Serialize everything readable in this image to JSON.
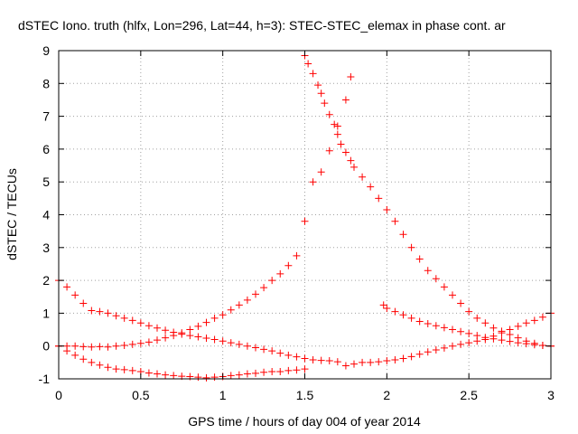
{
  "chart_data": {
    "type": "scatter",
    "title": "dSTEC Iono. truth (hlfx, Lon=296, Lat=44, h=3): STEC-STEC_elemax in phase cont. ar",
    "xlabel": "GPS time / hours of day 004 of year 2014",
    "ylabel": "dSTEC  / TECUs",
    "xlim": [
      0,
      3
    ],
    "ylim": [
      -1,
      9
    ],
    "xticks": [
      0,
      0.5,
      1,
      1.5,
      2,
      2.5,
      3
    ],
    "xtick_labels": [
      "0",
      "0.5",
      "1",
      "1.5",
      "2",
      "2.5",
      "3"
    ],
    "yticks": [
      -1,
      0,
      1,
      2,
      3,
      4,
      5,
      6,
      7,
      8,
      9
    ],
    "ytick_labels": [
      "-1",
      "0",
      "1",
      "2",
      "3",
      "4",
      "5",
      "6",
      "7",
      "8",
      "9"
    ],
    "grid": true,
    "legend": "none",
    "marker": "plus",
    "color": "#ff0000",
    "series": [
      {
        "x": [
          0.0,
          0.05,
          0.1,
          0.15,
          0.2,
          0.25,
          0.3,
          0.35,
          0.4,
          0.45,
          0.5,
          0.55,
          0.6,
          0.65,
          0.7,
          0.75,
          0.8,
          0.85,
          0.9,
          0.95,
          1.0,
          1.05,
          1.1,
          1.15,
          1.2,
          1.25,
          1.3,
          1.35,
          1.4,
          1.45,
          1.5,
          1.55,
          1.6,
          1.65,
          1.7,
          1.75,
          1.8,
          1.85,
          1.9,
          1.95,
          2.0,
          2.05,
          2.1,
          2.15,
          2.2,
          2.25,
          2.3,
          2.35,
          2.4,
          2.45,
          2.5,
          2.55,
          2.6,
          2.65,
          2.7,
          2.75,
          2.8,
          2.85,
          2.9,
          2.95,
          3.0
        ],
        "y": [
          2.0,
          1.8,
          1.55,
          1.3,
          1.08,
          1.05,
          1.0,
          0.92,
          0.85,
          0.78,
          0.7,
          0.62,
          0.55,
          0.48,
          0.42,
          0.36,
          0.32,
          0.28,
          0.24,
          0.2,
          0.15,
          0.1,
          0.05,
          0.0,
          -0.05,
          -0.1,
          -0.15,
          -0.22,
          -0.28,
          -0.33,
          -0.38,
          -0.42,
          -0.44,
          -0.45,
          -0.48,
          -0.6,
          -0.55,
          -0.5,
          -0.5,
          -0.48,
          -0.45,
          -0.42,
          -0.38,
          -0.32,
          -0.25,
          -0.18,
          -0.12,
          -0.06,
          0.0,
          0.05,
          0.1,
          0.15,
          0.2,
          0.3,
          0.4,
          0.5,
          0.6,
          0.7,
          0.78,
          0.88,
          1.0
        ]
      },
      {
        "x": [
          0.0,
          0.05,
          0.1,
          0.15,
          0.2,
          0.25,
          0.3,
          0.35,
          0.4,
          0.45,
          0.5,
          0.55,
          0.6,
          0.65,
          0.7,
          0.75,
          0.8,
          0.85,
          0.9,
          0.95,
          1.0,
          1.05,
          1.1,
          1.15,
          1.2,
          1.25,
          1.3,
          1.35,
          1.4,
          1.45,
          1.5,
          1.55,
          1.6,
          1.65,
          1.7,
          1.75,
          1.78
        ],
        "y": [
          0.0,
          0.0,
          0.0,
          -0.02,
          -0.03,
          -0.02,
          -0.03,
          0.0,
          0.02,
          0.05,
          0.08,
          0.12,
          0.18,
          0.25,
          0.32,
          0.4,
          0.5,
          0.6,
          0.72,
          0.85,
          0.95,
          1.1,
          1.25,
          1.4,
          1.58,
          1.78,
          2.0,
          2.2,
          2.45,
          2.75,
          3.8,
          5.0,
          5.3,
          5.95,
          6.7,
          7.5,
          8.2
        ]
      },
      {
        "x": [
          0.0,
          0.05,
          0.1,
          0.15,
          0.2,
          0.25,
          0.3,
          0.35,
          0.4,
          0.45,
          0.5,
          0.55,
          0.6,
          0.65,
          0.7,
          0.75,
          0.8,
          0.85,
          0.9,
          0.95,
          1.0,
          1.05,
          1.1,
          1.15,
          1.2,
          1.25,
          1.3,
          1.35,
          1.4,
          1.45,
          1.5
        ],
        "y": [
          0.0,
          -0.15,
          -0.28,
          -0.4,
          -0.5,
          -0.58,
          -0.65,
          -0.7,
          -0.72,
          -0.75,
          -0.78,
          -0.82,
          -0.85,
          -0.88,
          -0.9,
          -0.92,
          -0.93,
          -0.95,
          -0.97,
          -0.95,
          -0.93,
          -0.9,
          -0.88,
          -0.85,
          -0.83,
          -0.8,
          -0.78,
          -0.78,
          -0.75,
          -0.73,
          -0.7
        ]
      },
      {
        "x": [
          1.5,
          1.52,
          1.55,
          1.58,
          1.6,
          1.62,
          1.65,
          1.68,
          1.7,
          1.72,
          1.75,
          1.78,
          1.8,
          1.85,
          1.9,
          1.95,
          2.0,
          2.05,
          2.1,
          2.15,
          2.2,
          2.25,
          2.3,
          2.35,
          2.4,
          2.45,
          2.5,
          2.55,
          2.6,
          2.65,
          2.7,
          2.75,
          2.8,
          2.85,
          2.9,
          2.95,
          3.0
        ],
        "y": [
          8.85,
          8.6,
          8.3,
          7.95,
          7.7,
          7.4,
          7.05,
          6.75,
          6.45,
          6.15,
          5.9,
          5.65,
          5.45,
          5.15,
          4.85,
          4.5,
          4.15,
          3.8,
          3.4,
          3.0,
          2.65,
          2.3,
          2.05,
          1.8,
          1.55,
          1.3,
          1.05,
          0.85,
          0.7,
          0.55,
          0.45,
          0.35,
          0.25,
          0.15,
          0.08,
          0.02,
          0.0
        ]
      },
      {
        "x": [
          1.98,
          2.0,
          2.05,
          2.1,
          2.15,
          2.2,
          2.25,
          2.3,
          2.35,
          2.4,
          2.45,
          2.5,
          2.55,
          2.6,
          2.65,
          2.7,
          2.75,
          2.8,
          2.85,
          2.9,
          2.95,
          3.0
        ],
        "y": [
          1.25,
          1.15,
          1.05,
          0.95,
          0.85,
          0.75,
          0.68,
          0.62,
          0.56,
          0.5,
          0.44,
          0.38,
          0.32,
          0.26,
          0.22,
          0.18,
          0.14,
          0.1,
          0.07,
          0.04,
          0.02,
          0.0
        ]
      }
    ]
  }
}
